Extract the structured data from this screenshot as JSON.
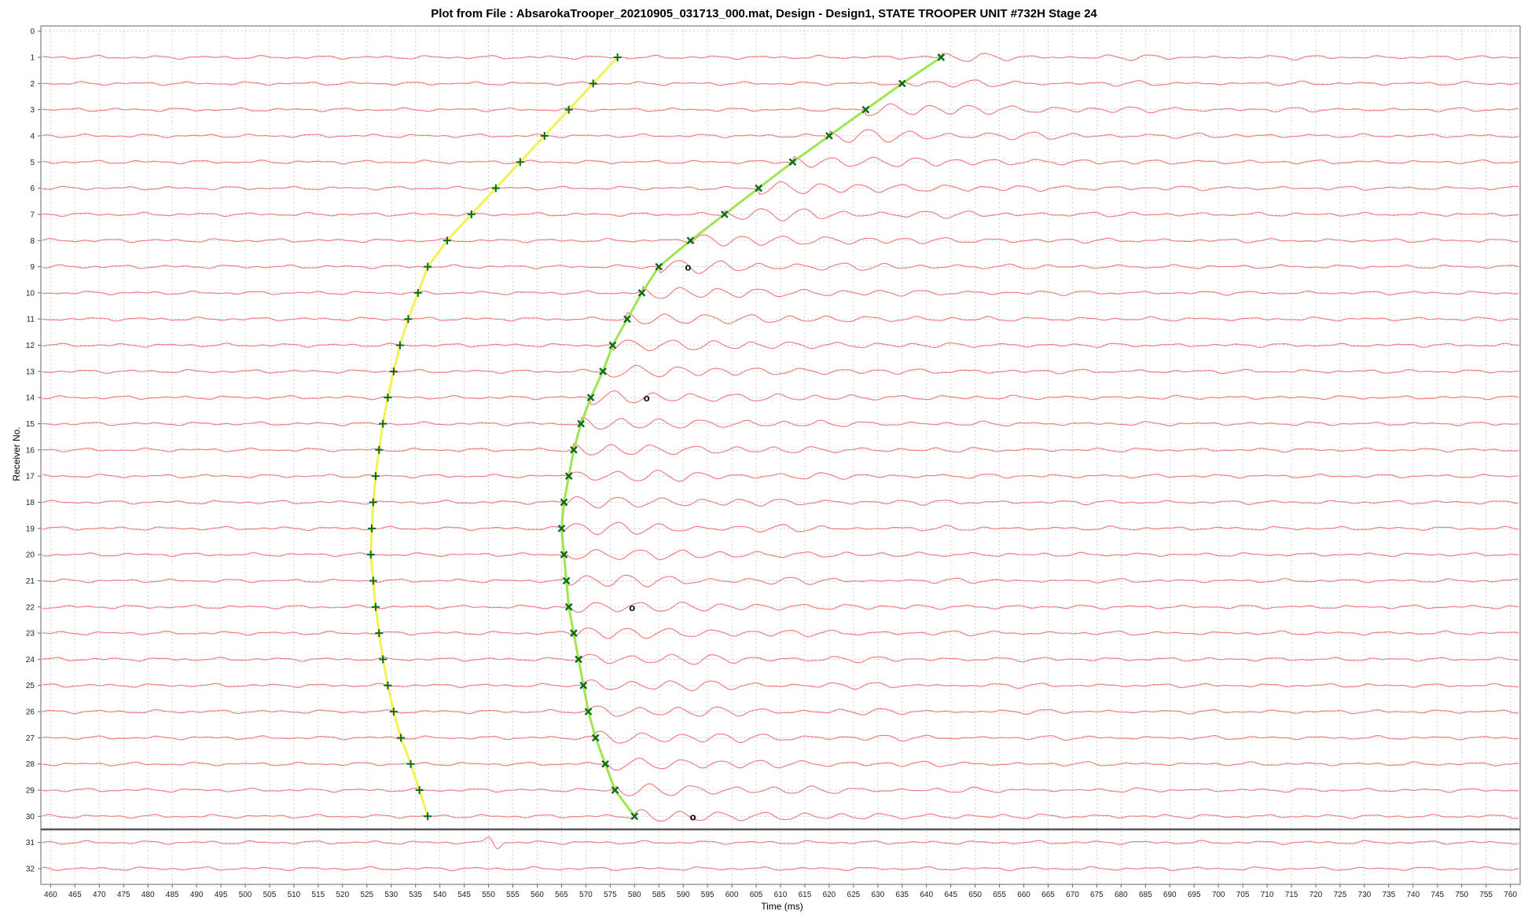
{
  "chart_data": {
    "type": "line",
    "title": "Plot from File : AbsarokaTrooper_20210905_031713_000.mat, Design - Design1, STATE TROOPER UNIT #732H Stage 24",
    "xlabel": "Time (ms)",
    "ylabel": "Receiver No.",
    "xlim": [
      458,
      762
    ],
    "ylim": [
      32.6,
      -0.2
    ],
    "y_inverted": true,
    "grid": true,
    "x_ticks": [
      460,
      465,
      470,
      475,
      480,
      485,
      490,
      495,
      500,
      505,
      510,
      515,
      520,
      525,
      530,
      535,
      540,
      545,
      550,
      555,
      560,
      565,
      570,
      575,
      580,
      585,
      590,
      595,
      600,
      605,
      610,
      615,
      620,
      625,
      630,
      635,
      640,
      645,
      650,
      655,
      660,
      665,
      670,
      675,
      680,
      685,
      690,
      695,
      700,
      705,
      710,
      715,
      720,
      725,
      730,
      735,
      740,
      745,
      750,
      755,
      760
    ],
    "y_ticks": [
      0,
      1,
      2,
      3,
      4,
      5,
      6,
      7,
      8,
      9,
      10,
      11,
      12,
      13,
      14,
      15,
      16,
      17,
      18,
      19,
      20,
      21,
      22,
      23,
      24,
      25,
      26,
      27,
      28,
      29,
      30,
      31,
      32
    ],
    "receivers": [
      1,
      2,
      3,
      4,
      5,
      6,
      7,
      8,
      9,
      10,
      11,
      12,
      13,
      14,
      15,
      16,
      17,
      18,
      19,
      20,
      21,
      22,
      23,
      24,
      25,
      26,
      27,
      28,
      29,
      30,
      31,
      32
    ],
    "trace_color": "#f08080",
    "series": [
      {
        "marker": "+",
        "color": "#f2f252",
        "receivers": [
          1,
          2,
          3,
          4,
          5,
          6,
          7,
          8,
          9,
          10,
          11,
          12,
          13,
          14,
          15,
          16,
          17,
          18,
          19,
          20,
          21,
          22,
          23,
          24,
          25,
          26,
          27,
          28,
          29,
          30
        ],
        "times": [
          576.5,
          571.5,
          566.5,
          561.5,
          556.5,
          551.5,
          546.5,
          541.5,
          537.5,
          535.5,
          533.5,
          531.8,
          530.5,
          529.3,
          528.3,
          527.5,
          526.8,
          526.3,
          526,
          525.8,
          526.3,
          526.8,
          527.5,
          528.3,
          529.3,
          530.5,
          532,
          534,
          535.8,
          537.5
        ]
      },
      {
        "marker": "x",
        "color": "#9fe550",
        "receivers": [
          1,
          2,
          3,
          4,
          5,
          6,
          7,
          8,
          9,
          10,
          11,
          12,
          13,
          14,
          15,
          16,
          17,
          18,
          19,
          20,
          21,
          22,
          23,
          24,
          25,
          26,
          27,
          28,
          29,
          30
        ],
        "times": [
          643,
          635,
          627.5,
          620,
          612.5,
          605.5,
          598.5,
          591.5,
          585,
          581.5,
          578.5,
          575.5,
          573.5,
          571,
          569,
          567.5,
          566.5,
          565.5,
          565,
          565.5,
          566,
          566.5,
          567.5,
          568.5,
          569.5,
          570.5,
          572,
          574,
          576,
          580
        ]
      }
    ],
    "markers_o": [
      {
        "receiver": 9,
        "time": 591
      },
      {
        "receiver": 14,
        "time": 582.5
      },
      {
        "receiver": 22,
        "time": 579.5
      },
      {
        "receiver": 30,
        "time": 592
      }
    ],
    "separator_line": {
      "position": 30.5,
      "color": "#555555"
    }
  }
}
